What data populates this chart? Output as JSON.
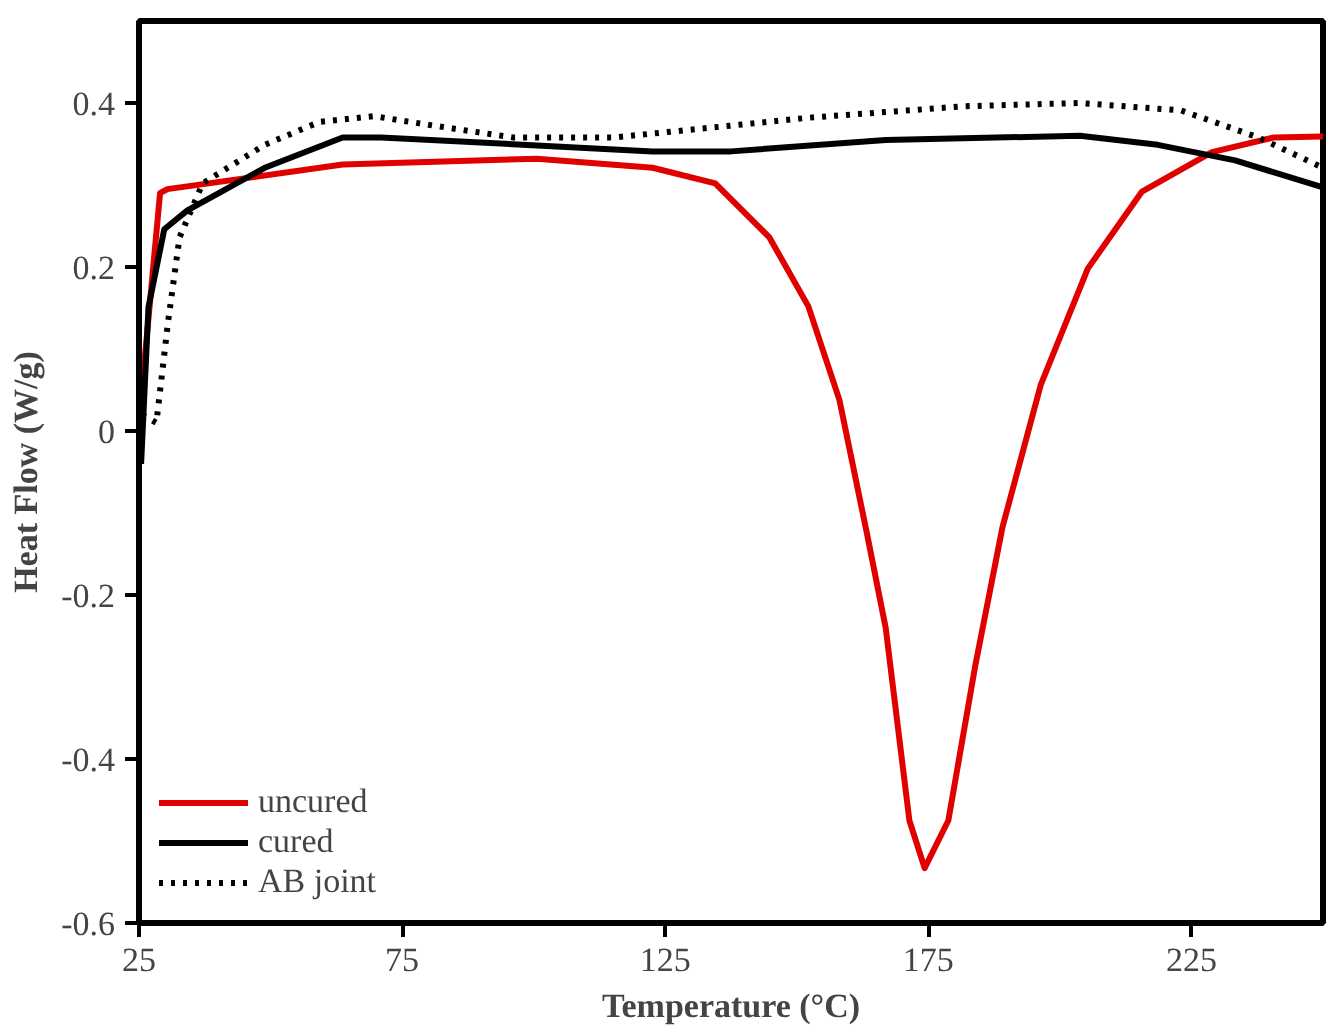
{
  "chart_data": {
    "type": "line",
    "xlabel": "Temperature (°C)",
    "ylabel": "Heat Flow (W/g)",
    "xlim": [
      25,
      250
    ],
    "ylim": [
      -0.6,
      0.5
    ],
    "xticks": [
      25,
      75,
      125,
      175,
      225
    ],
    "yticks": [
      -0.6,
      -0.4,
      -0.2,
      0,
      0.2,
      0.4
    ],
    "grid": false,
    "legend": "bottom left",
    "marker": "none",
    "series": [
      {
        "name": "uncured",
        "color": "#e00000",
        "line_style": "solid",
        "x": [
          25.4,
          29,
          30.4,
          63.7,
          100.6,
          122.6,
          134.5,
          144.8,
          152.2,
          158.1,
          163.3,
          166.9,
          171.4,
          174.3,
          178.8,
          183.9,
          189.1,
          196.4,
          205.3,
          215.6,
          228.9,
          240.7,
          250
        ],
        "values": [
          0.04,
          0.29,
          0.295,
          0.325,
          0.332,
          0.321,
          0.302,
          0.236,
          0.152,
          0.038,
          -0.124,
          -0.24,
          -0.475,
          -0.533,
          -0.475,
          -0.287,
          -0.117,
          0.057,
          0.198,
          0.292,
          0.34,
          0.358,
          0.359
        ]
      },
      {
        "name": "cured",
        "color": "#000000",
        "line_style": "solid",
        "x": [
          25.4,
          26.8,
          29.8,
          34.2,
          48.9,
          63.7,
          71,
          122.6,
          137.5,
          166.9,
          203.8,
          218.6,
          233.3,
          250
        ],
        "values": [
          -0.04,
          0.151,
          0.246,
          0.269,
          0.321,
          0.358,
          0.358,
          0.341,
          0.341,
          0.355,
          0.36,
          0.349,
          0.33,
          0.297
        ]
      },
      {
        "name": "AB joint",
        "color": "#000000",
        "line_style": "dotted",
        "x": [
          25.6,
          28.3,
          30.5,
          32.7,
          37.1,
          48.9,
          59.3,
          69.6,
          81.4,
          96.1,
          115.3,
          152.2,
          181.7,
          203.8,
          223,
          237.7,
          250
        ],
        "values": [
          0.02,
          0.01,
          0.132,
          0.236,
          0.302,
          0.349,
          0.377,
          0.384,
          0.372,
          0.358,
          0.358,
          0.382,
          0.396,
          0.4,
          0.391,
          0.358,
          0.321
        ]
      }
    ]
  }
}
